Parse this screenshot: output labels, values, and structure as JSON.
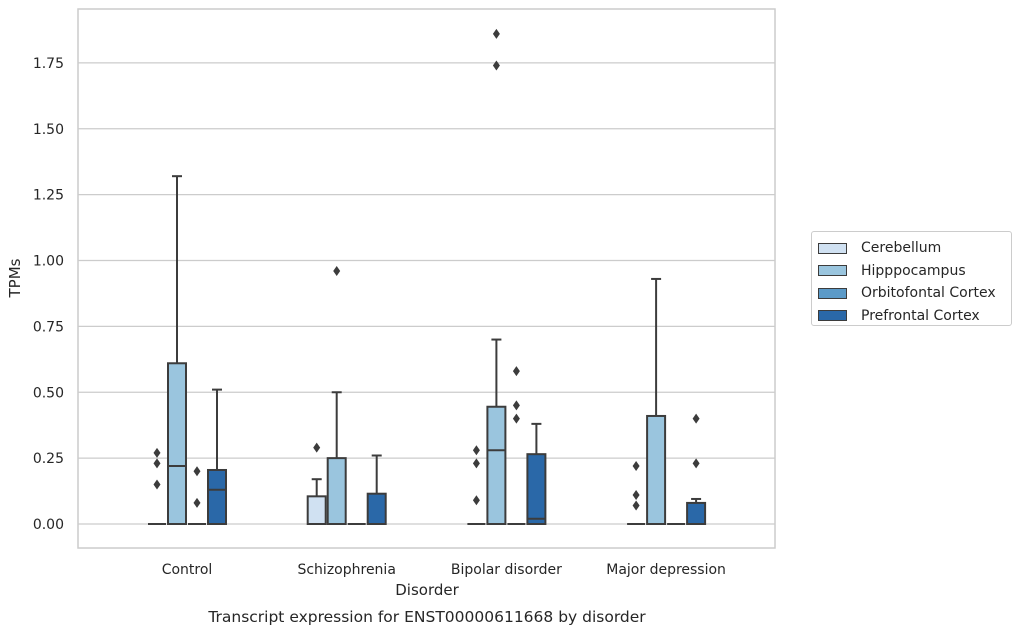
{
  "chart_data": {
    "type": "box",
    "caption": "Transcript expression for ENST00000611668 by disorder",
    "xlabel": "Disorder",
    "ylabel": "TPMs",
    "ylim": [
      -0.09,
      1.95
    ],
    "yticks": [
      0.0,
      0.25,
      0.5,
      0.75,
      1.0,
      1.25,
      1.5,
      1.75
    ],
    "ytick_labels": [
      "0.00",
      "0.25",
      "0.50",
      "0.75",
      "1.00",
      "1.25",
      "1.50",
      "1.75"
    ],
    "categories": [
      "Control",
      "Schizophrenia",
      "Bipolar disorder",
      "Major depression"
    ],
    "grid": true,
    "legend_position": "right",
    "series": [
      {
        "name": "Cerebellum",
        "color": "#d0e1f2",
        "boxes": [
          {
            "q1": 0,
            "median": 0,
            "q3": 0,
            "whislo": 0,
            "whishi": 0,
            "fliers": [
              0.27,
              0.23,
              0.15
            ]
          },
          {
            "q1": 0,
            "median": 0,
            "q3": 0.105,
            "whislo": 0,
            "whishi": 0.17,
            "fliers": [
              0.29
            ]
          },
          {
            "q1": 0,
            "median": 0,
            "q3": 0,
            "whislo": 0,
            "whishi": 0,
            "fliers": [
              0.28,
              0.23,
              0.09
            ]
          },
          {
            "q1": 0,
            "median": 0,
            "q3": 0,
            "whislo": 0,
            "whishi": 0,
            "fliers": [
              0.22,
              0.11,
              0.07
            ]
          }
        ]
      },
      {
        "name": "Hipppocampus",
        "color": "#9ac5de",
        "boxes": [
          {
            "q1": 0,
            "median": 0.22,
            "q3": 0.61,
            "whislo": 0,
            "whishi": 1.32,
            "fliers": []
          },
          {
            "q1": 0,
            "median": 0,
            "q3": 0.25,
            "whislo": 0,
            "whishi": 0.5,
            "fliers": [
              0.96
            ]
          },
          {
            "q1": 0,
            "median": 0.28,
            "q3": 0.445,
            "whislo": 0,
            "whishi": 0.7,
            "fliers": [
              1.86,
              1.74
            ]
          },
          {
            "q1": 0,
            "median": 0,
            "q3": 0.41,
            "whislo": 0,
            "whishi": 0.93,
            "fliers": []
          }
        ]
      },
      {
        "name": "Orbitofontal Cortex",
        "color": "#5b9ac8",
        "boxes": [
          {
            "q1": 0,
            "median": 0,
            "q3": 0,
            "whislo": 0,
            "whishi": 0,
            "fliers": [
              0.2,
              0.08
            ]
          },
          {
            "q1": 0,
            "median": 0,
            "q3": 0,
            "whislo": 0,
            "whishi": 0,
            "fliers": []
          },
          {
            "q1": 0,
            "median": 0,
            "q3": 0,
            "whislo": 0,
            "whishi": 0,
            "fliers": [
              0.58,
              0.45,
              0.4
            ]
          },
          {
            "q1": 0,
            "median": 0,
            "q3": 0,
            "whislo": 0,
            "whishi": 0,
            "fliers": []
          }
        ]
      },
      {
        "name": "Prefrontal Cortex",
        "color": "#2a68a8",
        "boxes": [
          {
            "q1": 0,
            "median": 0.13,
            "q3": 0.205,
            "whislo": 0,
            "whishi": 0.51,
            "fliers": []
          },
          {
            "q1": 0,
            "median": 0,
            "q3": 0.115,
            "whislo": 0,
            "whishi": 0.26,
            "fliers": []
          },
          {
            "q1": 0,
            "median": 0.02,
            "q3": 0.265,
            "whislo": 0,
            "whishi": 0.38,
            "fliers": []
          },
          {
            "q1": 0,
            "median": 0,
            "q3": 0.08,
            "whislo": 0,
            "whishi": 0.095,
            "fliers": [
              0.4,
              0.23
            ]
          }
        ]
      }
    ]
  }
}
